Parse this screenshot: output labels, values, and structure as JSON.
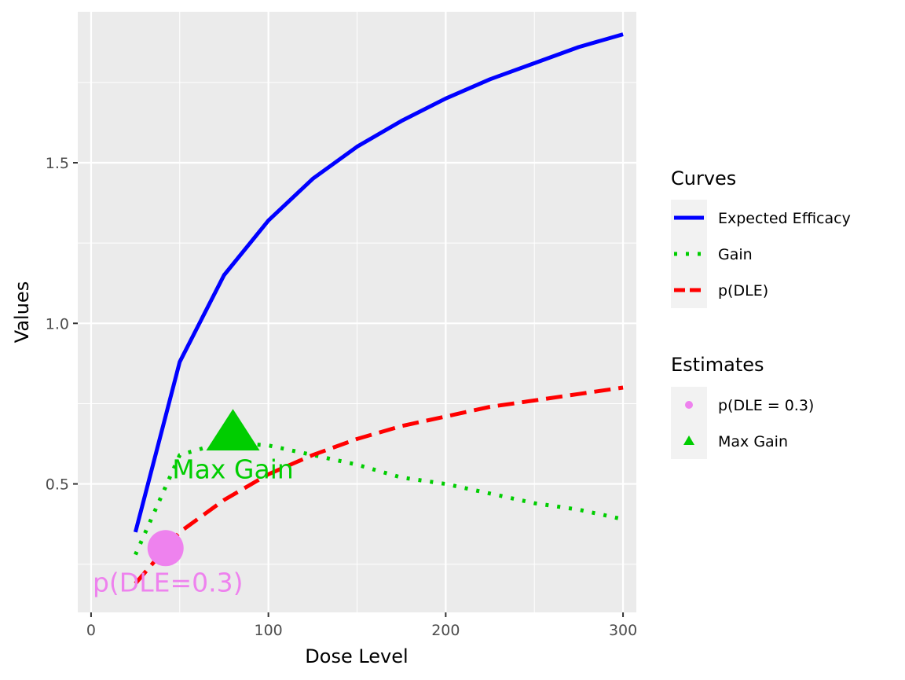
{
  "chart_data": {
    "type": "line",
    "xlabel": "Dose Level",
    "ylabel": "Values",
    "xlim": [
      -7.5,
      307.5
    ],
    "ylim": [
      0.1,
      1.97
    ],
    "x_ticks": [
      0,
      100,
      200,
      300
    ],
    "y_ticks": [
      0.5,
      1.0,
      1.5
    ],
    "x_tick_labels": [
      "0",
      "100",
      "200",
      "300"
    ],
    "y_tick_labels": [
      "0.5",
      "1.0",
      "1.5"
    ],
    "grid": true,
    "legend_position": "right",
    "series": [
      {
        "name": "Expected Efficacy",
        "color": "#0000ff",
        "dash": "solid",
        "x": [
          25,
          50,
          75,
          100,
          125,
          150,
          175,
          200,
          225,
          250,
          275,
          300
        ],
        "y": [
          0.35,
          0.88,
          1.15,
          1.32,
          1.45,
          1.55,
          1.63,
          1.7,
          1.76,
          1.81,
          1.86,
          1.9
        ]
      },
      {
        "name": "Gain",
        "color": "#00cd00",
        "dash": "dotted",
        "x": [
          25,
          50,
          75,
          100,
          125,
          150,
          175,
          200,
          225,
          250,
          275,
          300
        ],
        "y": [
          0.28,
          0.59,
          0.63,
          0.62,
          0.59,
          0.56,
          0.52,
          0.5,
          0.47,
          0.44,
          0.42,
          0.39
        ]
      },
      {
        "name": "p(DLE)",
        "color": "#ff0000",
        "dash": "dashed",
        "x": [
          25,
          50,
          75,
          100,
          125,
          150,
          175,
          200,
          225,
          250,
          275,
          300
        ],
        "y": [
          0.19,
          0.35,
          0.45,
          0.53,
          0.59,
          0.64,
          0.68,
          0.71,
          0.74,
          0.76,
          0.78,
          0.8
        ]
      }
    ],
    "estimates": [
      {
        "name": "p(DLE = 0.3)",
        "shape": "circle",
        "color": "#ee82ee",
        "x": 42,
        "y": 0.3,
        "label": "p(DLE=0.3)"
      },
      {
        "name": "Max Gain",
        "shape": "triangle",
        "color": "#00cd00",
        "x": 80,
        "y": 0.65,
        "label": "Max Gain"
      }
    ],
    "legend": {
      "curves_title": "Curves",
      "estimates_title": "Estimates"
    }
  }
}
